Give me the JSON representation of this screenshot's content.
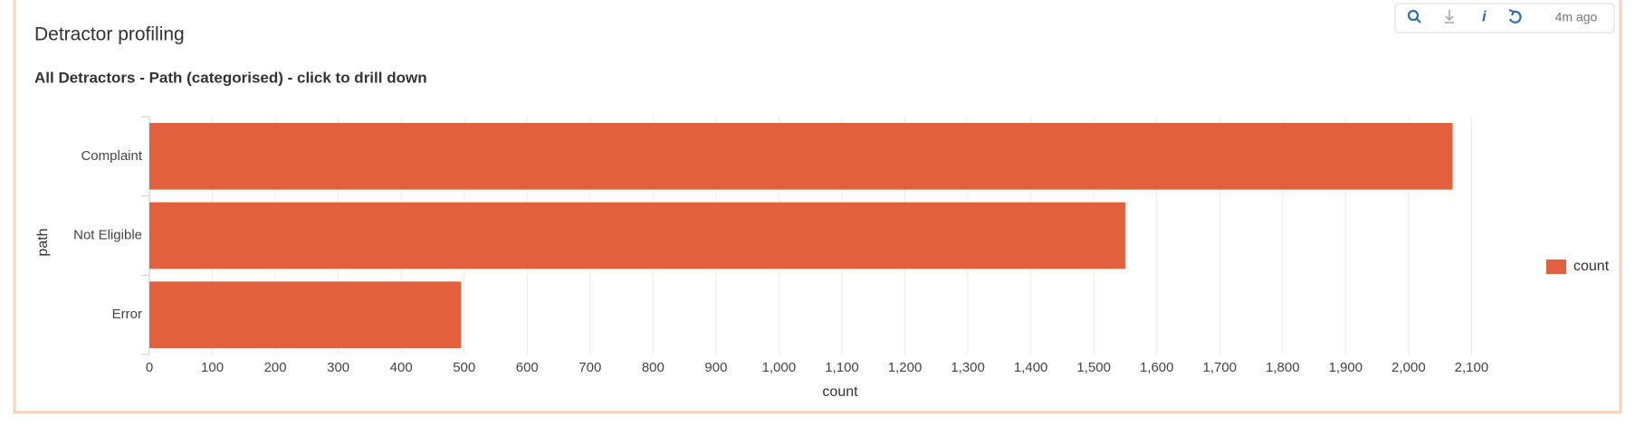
{
  "toolbar_status": "4m ago",
  "chart_data": {
    "type": "bar",
    "orientation": "horizontal",
    "title": "Detractor profiling",
    "subtitle": "All Detractors - Path (categorised) - click to drill down",
    "x_label": "count",
    "y_label": "path",
    "categories": [
      "Complaint",
      "Not Eligible",
      "Error"
    ],
    "series": [
      {
        "name": "count",
        "color": "#e2603d",
        "values": [
          2070,
          1550,
          495
        ]
      }
    ],
    "xlim": [
      0,
      2200
    ],
    "xticks": [
      0,
      100,
      200,
      300,
      400,
      500,
      600,
      700,
      800,
      900,
      {
        "value": 1000,
        "label": "1,000"
      },
      {
        "value": 1100,
        "label": "1,100"
      },
      {
        "value": 1200,
        "label": "1,200"
      },
      {
        "value": 1300,
        "label": "1,300"
      },
      {
        "value": 1400,
        "label": "1,400"
      },
      {
        "value": 1500,
        "label": "1,500"
      },
      {
        "value": 1600,
        "label": "1,600"
      },
      {
        "value": 1700,
        "label": "1,700"
      },
      {
        "value": 1800,
        "label": "1,800"
      },
      {
        "value": 1900,
        "label": "1,900"
      },
      {
        "value": 2000,
        "label": "2,000"
      },
      {
        "value": 2100,
        "label": "2,100"
      }
    ],
    "grid": true,
    "legend": "right"
  }
}
